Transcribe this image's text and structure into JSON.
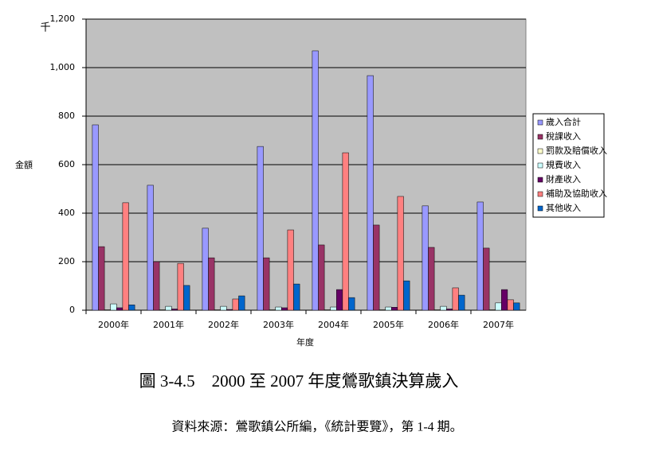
{
  "chart_data": {
    "type": "bar",
    "title": "圖 3-4.5　2000 至 2007 年度鶯歌鎮決算歲入",
    "source": "資料來源：鶯歌鎮公所編，《統計要覽》，第 1-4 期。",
    "unit_label": "千",
    "y_label": "金額",
    "x_label": "年度",
    "categories": [
      "2000年",
      "2001年",
      "2002年",
      "2003年",
      "2004年",
      "2005年",
      "2006年",
      "2007年"
    ],
    "series": [
      {
        "name": "歲入合計",
        "color": "#9999ff",
        "values": [
          764,
          515,
          338,
          675,
          1069,
          967,
          430,
          446
        ]
      },
      {
        "name": "稅課收入",
        "color": "#993366",
        "values": [
          262,
          200,
          216,
          216,
          269,
          351,
          259,
          256
        ]
      },
      {
        "name": "罰款及賠償收入",
        "color": "#ffffcc",
        "values": [
          2,
          2,
          2,
          2,
          2,
          2,
          2,
          2
        ]
      },
      {
        "name": "規費收入",
        "color": "#ccffff",
        "values": [
          26,
          16,
          16,
          13,
          13,
          13,
          16,
          30
        ]
      },
      {
        "name": "財產收入",
        "color": "#660066",
        "values": [
          10,
          5,
          3,
          10,
          85,
          12,
          5,
          85
        ]
      },
      {
        "name": "補助及協助收入",
        "color": "#ff8080",
        "values": [
          443,
          193,
          46,
          331,
          649,
          469,
          92,
          43
        ]
      },
      {
        "name": "其他收入",
        "color": "#0066cc",
        "values": [
          22,
          102,
          59,
          108,
          52,
          121,
          62,
          30
        ]
      }
    ],
    "ylim": [
      0,
      1200
    ],
    "yticks": [
      0,
      200,
      400,
      600,
      800,
      {
        "value": 1000,
        "label": "1,000"
      },
      {
        "value": 1200,
        "label": "1,200"
      }
    ],
    "grid": true,
    "legend": "right",
    "background": "#c0c0c0"
  }
}
